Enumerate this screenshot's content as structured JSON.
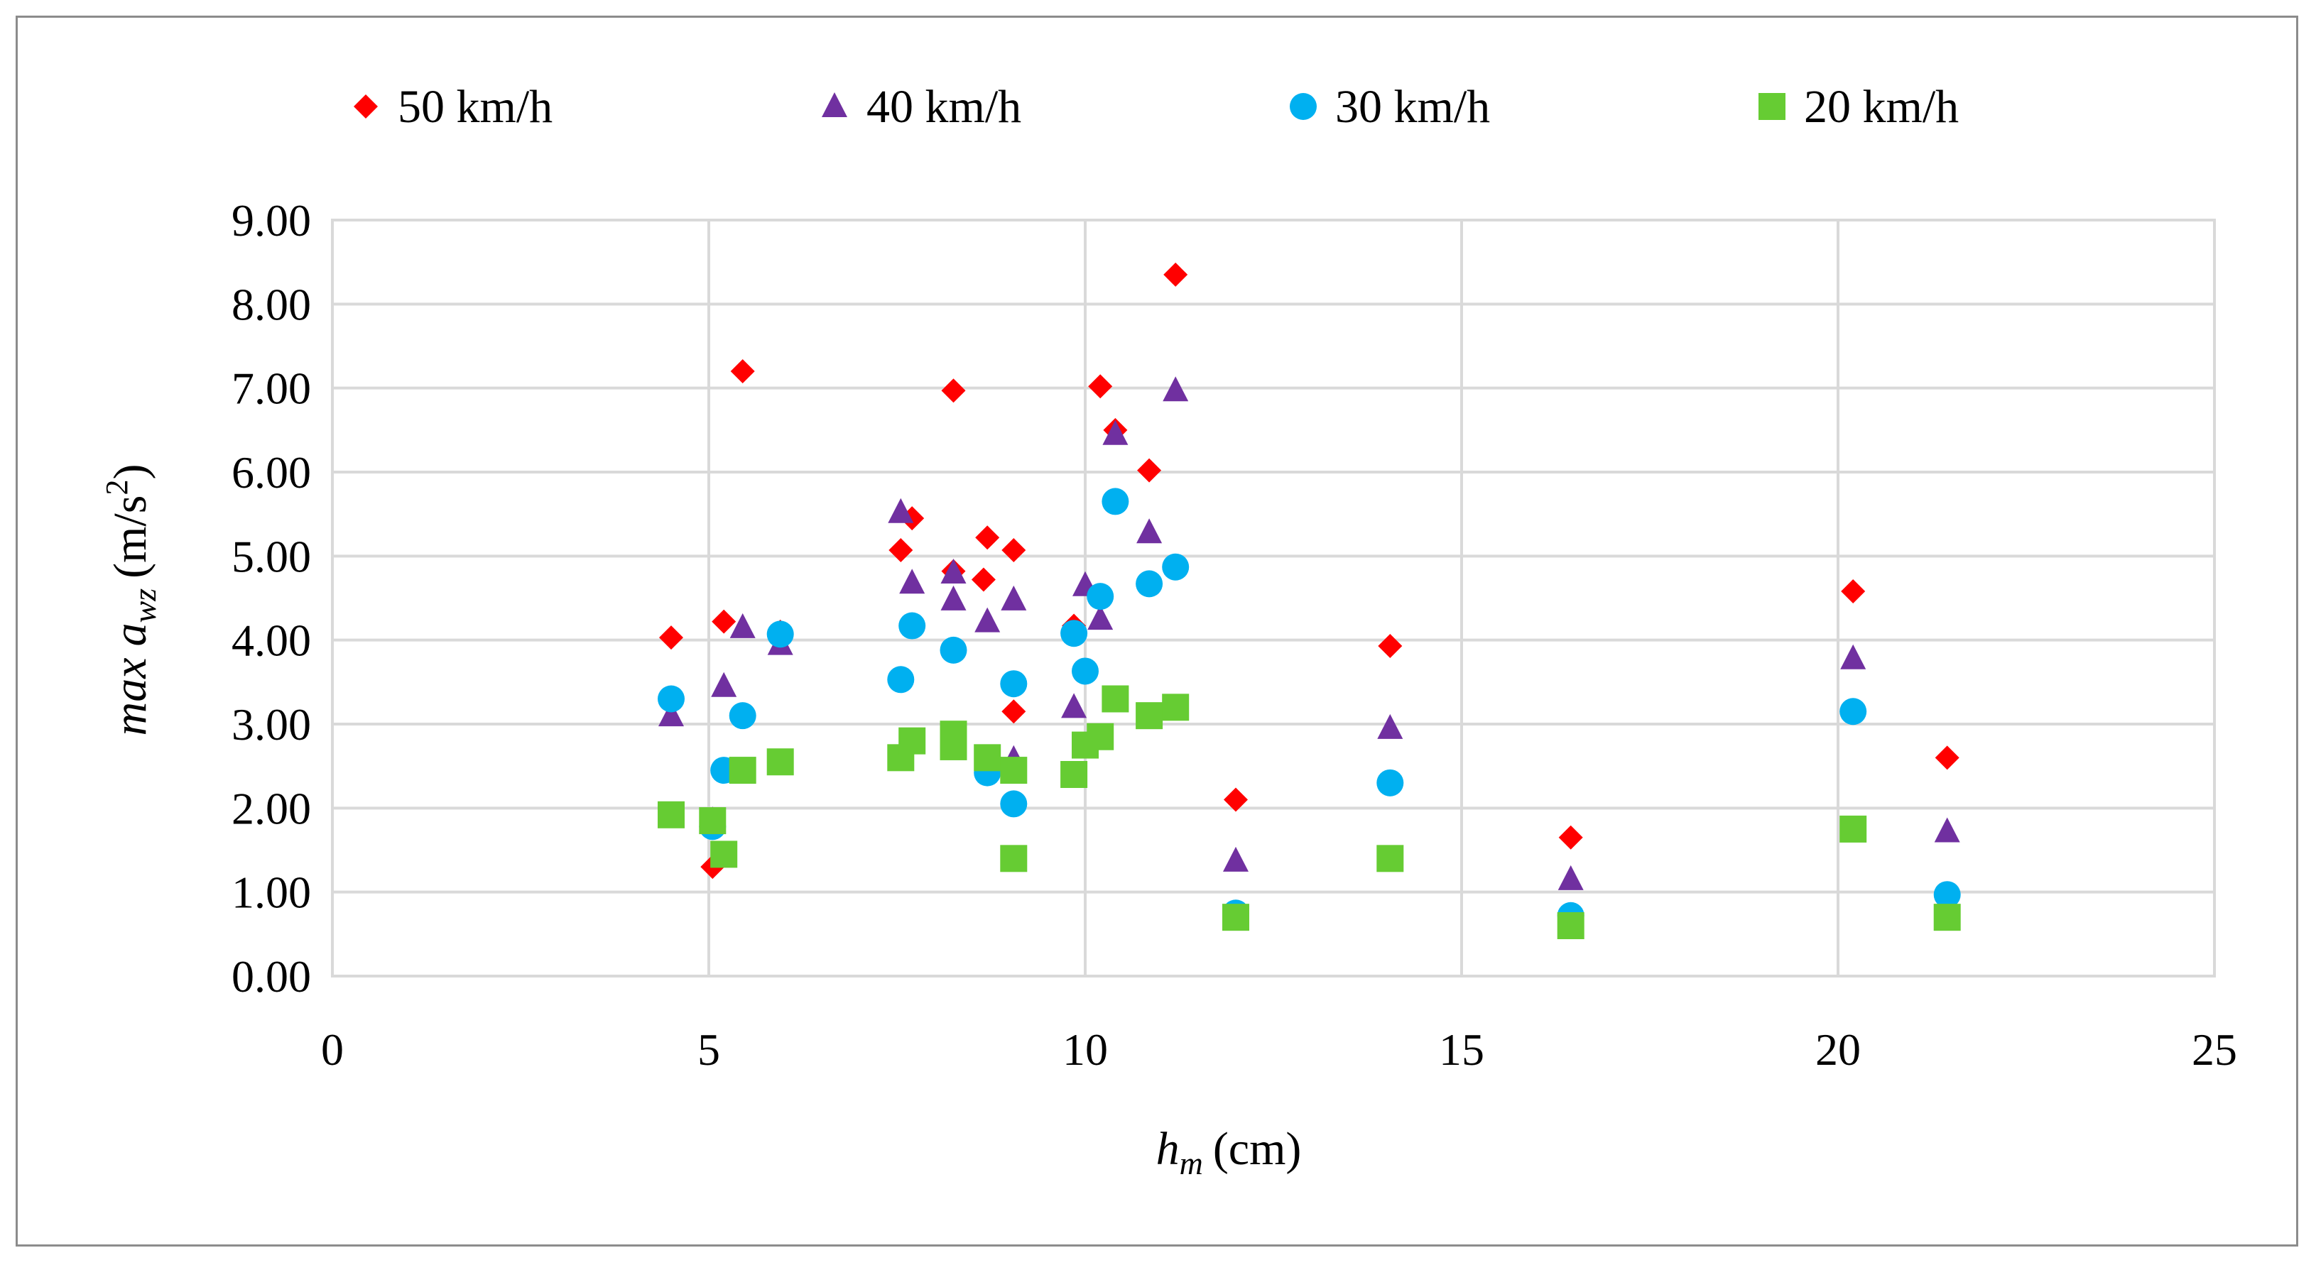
{
  "chart_data": {
    "type": "scatter",
    "title": "",
    "xlabel": {
      "symbol": "h",
      "subscript": "m",
      "unit": "(cm)"
    },
    "ylabel": {
      "prefix": "max",
      "symbol": "a",
      "subscript": "wz",
      "unit_before": "(m/s",
      "unit_sup": "2",
      "unit_after": ")"
    },
    "xlim": [
      0,
      25
    ],
    "ylim": [
      0,
      9
    ],
    "x_ticks": [
      "0",
      "5",
      "10",
      "15",
      "20",
      "25"
    ],
    "y_ticks": [
      "0.00",
      "1.00",
      "2.00",
      "3.00",
      "4.00",
      "5.00",
      "6.00",
      "7.00",
      "8.00",
      "9.00"
    ],
    "grid": true,
    "legend_position": "top",
    "series": [
      {
        "name": "50 km/h",
        "marker": "diamond",
        "color": "#ff0000",
        "points": [
          [
            4.5,
            4.03
          ],
          [
            5.05,
            1.3
          ],
          [
            5.2,
            4.22
          ],
          [
            5.45,
            7.2
          ],
          [
            5.95,
            4.1
          ],
          [
            7.55,
            5.07
          ],
          [
            7.7,
            5.45
          ],
          [
            8.25,
            6.97
          ],
          [
            8.25,
            4.82
          ],
          [
            8.65,
            4.72
          ],
          [
            8.7,
            5.22
          ],
          [
            9.05,
            5.07
          ],
          [
            9.05,
            3.15
          ],
          [
            9.85,
            4.17
          ],
          [
            10.2,
            7.02
          ],
          [
            10.4,
            6.5
          ],
          [
            10.85,
            6.02
          ],
          [
            11.2,
            8.35
          ],
          [
            12.0,
            2.1
          ],
          [
            14.05,
            3.93
          ],
          [
            16.45,
            1.65
          ],
          [
            20.2,
            4.58
          ],
          [
            21.45,
            2.6
          ]
        ]
      },
      {
        "name": "40 km/h",
        "marker": "triangle",
        "color": "#7030a0",
        "points": [
          [
            4.5,
            3.1
          ],
          [
            5.05,
            1.85
          ],
          [
            5.2,
            3.45
          ],
          [
            5.45,
            4.15
          ],
          [
            5.95,
            3.95
          ],
          [
            7.55,
            5.52
          ],
          [
            7.7,
            4.68
          ],
          [
            8.25,
            4.8
          ],
          [
            8.25,
            4.48
          ],
          [
            8.7,
            4.22
          ],
          [
            9.05,
            4.48
          ],
          [
            9.05,
            2.58
          ],
          [
            9.85,
            3.2
          ],
          [
            10.0,
            4.65
          ],
          [
            10.2,
            4.25
          ],
          [
            10.4,
            6.45
          ],
          [
            10.85,
            5.28
          ],
          [
            11.2,
            6.97
          ],
          [
            12.0,
            1.37
          ],
          [
            14.05,
            2.95
          ],
          [
            16.45,
            1.15
          ],
          [
            20.2,
            3.78
          ],
          [
            21.45,
            1.72
          ]
        ]
      },
      {
        "name": "30 km/h",
        "marker": "circle",
        "color": "#00b0f0",
        "points": [
          [
            4.5,
            3.3
          ],
          [
            5.05,
            1.78
          ],
          [
            5.2,
            2.45
          ],
          [
            5.45,
            3.1
          ],
          [
            5.95,
            4.07
          ],
          [
            7.55,
            3.53
          ],
          [
            7.7,
            4.17
          ],
          [
            8.25,
            3.88
          ],
          [
            8.7,
            2.42
          ],
          [
            9.05,
            3.48
          ],
          [
            9.05,
            2.05
          ],
          [
            9.85,
            4.08
          ],
          [
            10.0,
            3.63
          ],
          [
            10.2,
            4.52
          ],
          [
            10.4,
            5.65
          ],
          [
            10.85,
            4.67
          ],
          [
            11.2,
            4.87
          ],
          [
            12.0,
            0.75
          ],
          [
            14.05,
            2.3
          ],
          [
            16.45,
            0.72
          ],
          [
            20.2,
            3.15
          ],
          [
            21.45,
            0.97
          ]
        ]
      },
      {
        "name": "20 km/h",
        "marker": "square",
        "color": "#66cc33",
        "points": [
          [
            4.5,
            1.92
          ],
          [
            5.05,
            1.85
          ],
          [
            5.2,
            1.45
          ],
          [
            5.45,
            2.45
          ],
          [
            5.95,
            2.55
          ],
          [
            7.55,
            2.6
          ],
          [
            7.7,
            2.8
          ],
          [
            8.25,
            2.88
          ],
          [
            8.25,
            2.73
          ],
          [
            8.7,
            2.6
          ],
          [
            9.05,
            2.45
          ],
          [
            9.05,
            1.4
          ],
          [
            9.85,
            2.4
          ],
          [
            10.0,
            2.75
          ],
          [
            10.2,
            2.85
          ],
          [
            10.4,
            3.3
          ],
          [
            10.85,
            3.1
          ],
          [
            11.2,
            3.2
          ],
          [
            12.0,
            0.7
          ],
          [
            14.05,
            1.4
          ],
          [
            16.45,
            0.6
          ],
          [
            20.2,
            1.75
          ],
          [
            21.45,
            0.7
          ]
        ]
      }
    ]
  }
}
